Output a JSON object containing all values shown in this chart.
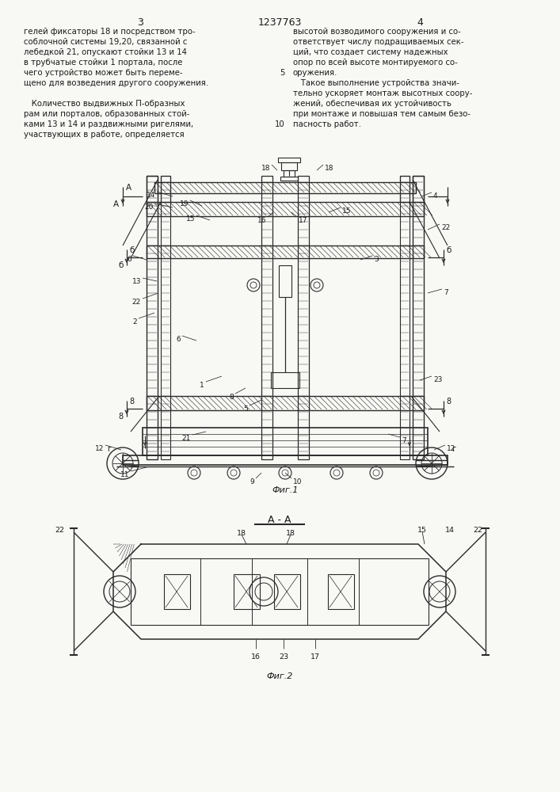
{
  "page_width": 7.07,
  "page_height": 10.0,
  "bg_color": "#f8f8f5",
  "text_color": "#1a1a1a",
  "line_color": "#2a2a2a",
  "header_text_3": "3",
  "header_patent": "1237763",
  "header_text_4": "4",
  "col1_text": [
    "гелей фиксаторы 18 и посредством тро-",
    "соблочной системы 19,20, связанной с",
    "лебедкой 21, опускают стойки 13 и 14",
    "в трубчатые стойки 1 портала, после",
    "чего устройство может быть переме-",
    "щено для возведения другого сооружения.",
    "",
    "   Количество выдвижных П-образных",
    "рам или порталов, образованных стой-",
    "ками 13 и 14 и раздвижными ригелями,",
    "участвующих в работе, определяется"
  ],
  "col2_text": [
    "высотой возводимого сооружения и со-",
    "ответствует числу подращиваемых сек-",
    "ций, что создает систему надежных",
    "опор по всей высоте монтируемого со-",
    "оружения.",
    "   Такое выполнение устройства значи-",
    "тельно ускоряет монтаж высотных соору-",
    "жений, обеспечивая их устойчивость",
    "при монтаже и повышая тем самым безо-",
    "пасность работ."
  ],
  "fig1_caption": "Фиг.1",
  "fig2_caption": "Фиг.2",
  "section_label": "А - А"
}
